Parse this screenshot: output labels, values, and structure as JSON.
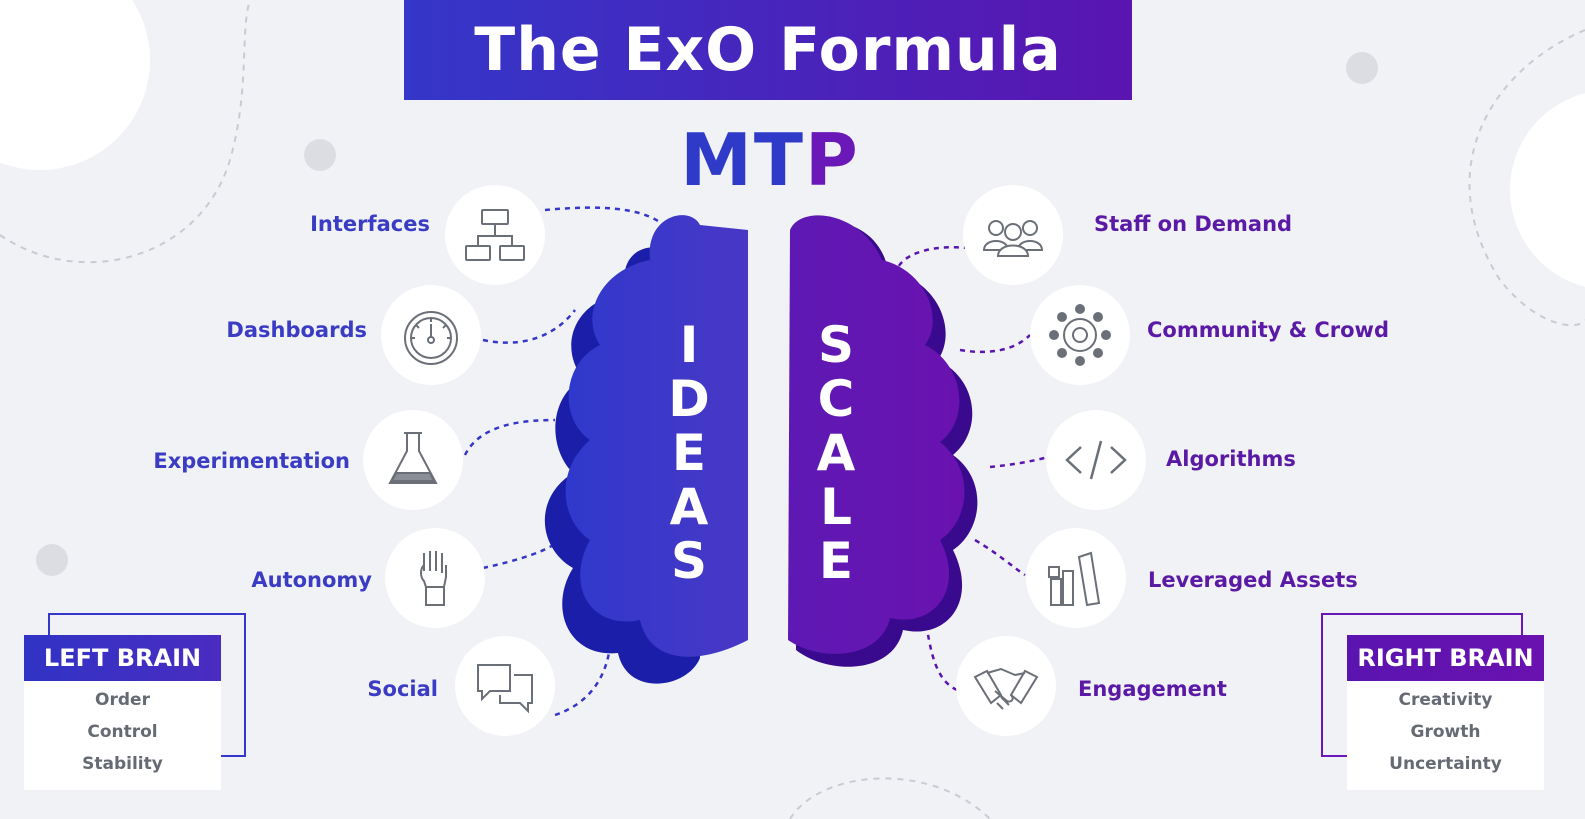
{
  "title": "The ExO Formula",
  "mtp": {
    "mt": "MT",
    "p": "P"
  },
  "left_word": [
    "I",
    "D",
    "E",
    "A",
    "S"
  ],
  "right_word": [
    "S",
    "C",
    "A",
    "L",
    "E"
  ],
  "left_items": [
    {
      "label": "Interfaces",
      "icon": "interfaces-icon"
    },
    {
      "label": "Dashboards",
      "icon": "dashboard-gauge-icon"
    },
    {
      "label": "Experimentation",
      "icon": "flask-icon"
    },
    {
      "label": "Autonomy",
      "icon": "raised-fist-icon"
    },
    {
      "label": "Social",
      "icon": "chat-bubbles-icon"
    }
  ],
  "right_items": [
    {
      "label": "Staff on Demand",
      "icon": "people-icon"
    },
    {
      "label": "Community & Crowd",
      "icon": "community-network-icon"
    },
    {
      "label": "Algorithms",
      "icon": "code-icon"
    },
    {
      "label": "Leveraged Assets",
      "icon": "assets-icon"
    },
    {
      "label": "Engagement",
      "icon": "handshake-icon"
    }
  ],
  "left_box": {
    "title": "LEFT BRAIN",
    "items": [
      "Order",
      "Control",
      "Stability"
    ]
  },
  "right_box": {
    "title": "RIGHT BRAIN",
    "items": [
      "Creativity",
      "Growth",
      "Uncertainty"
    ]
  },
  "colors": {
    "blue": "#3437c9",
    "purple": "#5a14b0",
    "background": "#f1f2f6"
  }
}
